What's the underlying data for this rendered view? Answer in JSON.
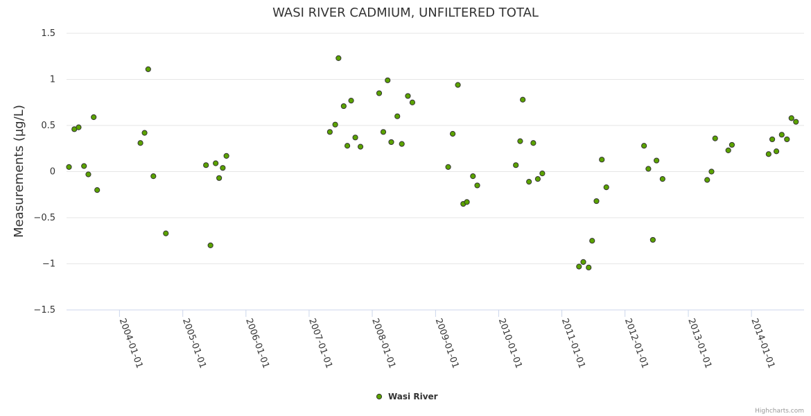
{
  "chart_data": {
    "type": "scatter",
    "title": "WASI RIVER CADMIUM, UNFILTERED TOTAL",
    "xlabel": "",
    "ylabel": "Measurements (µg/L)",
    "ylim": [
      -1.5,
      1.5
    ],
    "yticks": [
      -1.5,
      -1,
      -0.5,
      0,
      0.5,
      1,
      1.5
    ],
    "ytick_labels": [
      "−1.5",
      "−1",
      "−0.5",
      "0",
      "0.5",
      "1",
      "1.5"
    ],
    "xlim": [
      "2003-03-01",
      "2014-11-01"
    ],
    "xticks": [
      "2004-01-01",
      "2005-01-01",
      "2006-01-01",
      "2007-01-01",
      "2008-01-01",
      "2009-01-01",
      "2010-01-01",
      "2011-01-01",
      "2012-01-01",
      "2013-01-01",
      "2014-01-01"
    ],
    "grid": "horizontal",
    "legend_position": "bottom-center",
    "series": [
      {
        "name": "Wasi River",
        "color": "#5ba300",
        "points": [
          {
            "x": "2003-03-15",
            "y": 0.05
          },
          {
            "x": "2003-04-15",
            "y": 0.46
          },
          {
            "x": "2003-05-10",
            "y": 0.48
          },
          {
            "x": "2003-06-10",
            "y": 0.06
          },
          {
            "x": "2003-07-05",
            "y": -0.03
          },
          {
            "x": "2003-08-05",
            "y": 0.59
          },
          {
            "x": "2003-08-25",
            "y": -0.2
          },
          {
            "x": "2004-05-01",
            "y": 0.31
          },
          {
            "x": "2004-05-25",
            "y": 0.42
          },
          {
            "x": "2004-06-15",
            "y": 1.11
          },
          {
            "x": "2004-07-15",
            "y": -0.05
          },
          {
            "x": "2004-09-25",
            "y": -0.67
          },
          {
            "x": "2005-05-15",
            "y": 0.07
          },
          {
            "x": "2005-06-10",
            "y": -0.8
          },
          {
            "x": "2005-07-10",
            "y": 0.09
          },
          {
            "x": "2005-07-30",
            "y": -0.07
          },
          {
            "x": "2005-08-20",
            "y": 0.04
          },
          {
            "x": "2005-09-10",
            "y": 0.17
          },
          {
            "x": "2007-05-01",
            "y": 0.43
          },
          {
            "x": "2007-06-01",
            "y": 0.51
          },
          {
            "x": "2007-06-20",
            "y": 1.23
          },
          {
            "x": "2007-07-20",
            "y": 0.71
          },
          {
            "x": "2007-08-10",
            "y": 0.28
          },
          {
            "x": "2007-09-01",
            "y": 0.77
          },
          {
            "x": "2007-09-25",
            "y": 0.37
          },
          {
            "x": "2007-10-25",
            "y": 0.27
          },
          {
            "x": "2008-02-10",
            "y": 0.85
          },
          {
            "x": "2008-03-05",
            "y": 0.43
          },
          {
            "x": "2008-03-30",
            "y": 0.99
          },
          {
            "x": "2008-04-20",
            "y": 0.32
          },
          {
            "x": "2008-05-25",
            "y": 0.6
          },
          {
            "x": "2008-06-20",
            "y": 0.3
          },
          {
            "x": "2008-07-25",
            "y": 0.82
          },
          {
            "x": "2008-08-20",
            "y": 0.75
          },
          {
            "x": "2009-03-15",
            "y": 0.05
          },
          {
            "x": "2009-04-10",
            "y": 0.41
          },
          {
            "x": "2009-05-10",
            "y": 0.94
          },
          {
            "x": "2009-06-10",
            "y": -0.35
          },
          {
            "x": "2009-07-01",
            "y": -0.33
          },
          {
            "x": "2009-08-05",
            "y": -0.05
          },
          {
            "x": "2009-08-30",
            "y": -0.15
          },
          {
            "x": "2010-04-10",
            "y": 0.07
          },
          {
            "x": "2010-05-05",
            "y": 0.33
          },
          {
            "x": "2010-05-20",
            "y": 0.78
          },
          {
            "x": "2010-06-25",
            "y": -0.11
          },
          {
            "x": "2010-07-20",
            "y": 0.31
          },
          {
            "x": "2010-08-15",
            "y": -0.08
          },
          {
            "x": "2010-09-10",
            "y": -0.02
          },
          {
            "x": "2011-04-10",
            "y": -1.03
          },
          {
            "x": "2011-05-05",
            "y": -0.98
          },
          {
            "x": "2011-06-05",
            "y": -1.04
          },
          {
            "x": "2011-06-25",
            "y": -0.75
          },
          {
            "x": "2011-07-20",
            "y": -0.32
          },
          {
            "x": "2011-08-20",
            "y": 0.13
          },
          {
            "x": "2011-09-15",
            "y": -0.17
          },
          {
            "x": "2012-04-20",
            "y": 0.28
          },
          {
            "x": "2012-05-15",
            "y": 0.03
          },
          {
            "x": "2012-06-10",
            "y": -0.74
          },
          {
            "x": "2012-07-01",
            "y": 0.12
          },
          {
            "x": "2012-08-05",
            "y": -0.08
          },
          {
            "x": "2013-04-20",
            "y": -0.09
          },
          {
            "x": "2013-05-15",
            "y": 0.0
          },
          {
            "x": "2013-06-05",
            "y": 0.36
          },
          {
            "x": "2013-08-20",
            "y": 0.23
          },
          {
            "x": "2013-09-10",
            "y": 0.29
          },
          {
            "x": "2014-04-10",
            "y": 0.19
          },
          {
            "x": "2014-05-01",
            "y": 0.35
          },
          {
            "x": "2014-05-25",
            "y": 0.22
          },
          {
            "x": "2014-06-25",
            "y": 0.4
          },
          {
            "x": "2014-07-25",
            "y": 0.35
          },
          {
            "x": "2014-08-20",
            "y": 0.58
          },
          {
            "x": "2014-09-15",
            "y": 0.54
          }
        ]
      }
    ]
  },
  "credits": "Highcharts.com"
}
